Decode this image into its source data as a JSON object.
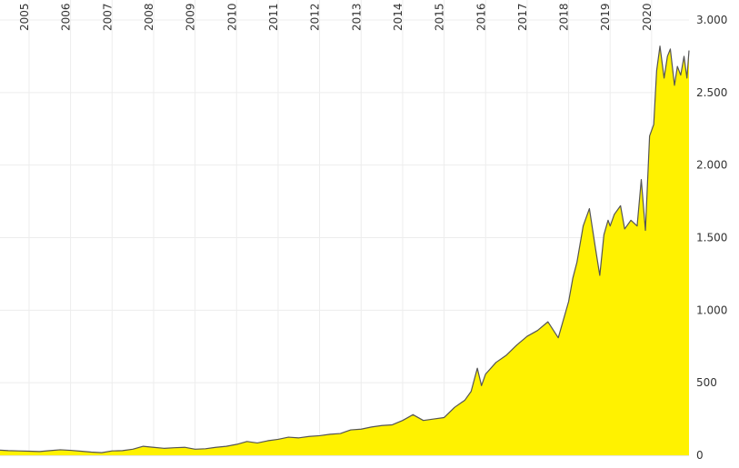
{
  "chart_data": {
    "type": "area",
    "title": "",
    "xlabel": "",
    "ylabel": "",
    "x_tick_labels": [
      "2005",
      "2006",
      "2007",
      "2008",
      "2009",
      "2010",
      "2011",
      "2012",
      "2013",
      "2014",
      "2015",
      "2016",
      "2017",
      "2018",
      "2019",
      "2020"
    ],
    "y_tick_labels": [
      "0",
      "500",
      "1.000",
      "1.500",
      "2.000",
      "2.500",
      "3.000"
    ],
    "y_ticks": [
      0,
      500,
      1000,
      1500,
      2000,
      2500,
      3000
    ],
    "ylim": [
      0,
      3000
    ],
    "xlim": [
      2004.3,
      2020.9
    ],
    "grid": true,
    "legend": "none",
    "y_axis_side": "right",
    "x_axis_side": "top",
    "fill_color": "#fff200",
    "line_color": "#555555",
    "series": [
      {
        "x": [
          2004.3,
          2004.5,
          2004.75,
          2005.0,
          2005.25,
          2005.5,
          2005.75,
          2006.0,
          2006.25,
          2006.5,
          2006.75,
          2007.0,
          2007.25,
          2007.5,
          2007.75,
          2008.0,
          2008.25,
          2008.5,
          2008.75,
          2009.0,
          2009.25,
          2009.5,
          2009.75,
          2010.0,
          2010.25,
          2010.5,
          2010.75,
          2011.0,
          2011.25,
          2011.5,
          2011.75,
          2012.0,
          2012.25,
          2012.5,
          2012.75,
          2013.0,
          2013.25,
          2013.5,
          2013.75,
          2014.0,
          2014.25,
          2014.5,
          2014.75,
          2015.0,
          2015.25,
          2015.5,
          2015.65,
          2015.8,
          2015.9,
          2016.0,
          2016.25,
          2016.5,
          2016.75,
          2017.0,
          2017.25,
          2017.5,
          2017.75,
          2018.0,
          2018.1,
          2018.2,
          2018.35,
          2018.5,
          2018.65,
          2018.75,
          2018.85,
          2018.95,
          2019.0,
          2019.1,
          2019.25,
          2019.35,
          2019.5,
          2019.65,
          2019.75,
          2019.85,
          2019.95,
          2020.05,
          2020.12,
          2020.2,
          2020.3,
          2020.38,
          2020.45,
          2020.55,
          2020.62,
          2020.7,
          2020.78,
          2020.85,
          2020.9
        ],
        "y": [
          35,
          32,
          30,
          28,
          26,
          32,
          38,
          34,
          28,
          22,
          18,
          30,
          32,
          42,
          62,
          55,
          48,
          52,
          55,
          42,
          45,
          55,
          62,
          75,
          95,
          85,
          100,
          110,
          125,
          120,
          130,
          135,
          145,
          150,
          175,
          180,
          195,
          205,
          210,
          240,
          280,
          240,
          250,
          260,
          330,
          380,
          440,
          600,
          480,
          560,
          640,
          690,
          760,
          820,
          860,
          920,
          810,
          1060,
          1220,
          1330,
          1580,
          1700,
          1420,
          1240,
          1520,
          1620,
          1580,
          1660,
          1720,
          1560,
          1620,
          1580,
          1900,
          1550,
          2200,
          2280,
          2650,
          2820,
          2600,
          2750,
          2800,
          2550,
          2680,
          2620,
          2750,
          2600,
          2790
        ]
      }
    ]
  }
}
